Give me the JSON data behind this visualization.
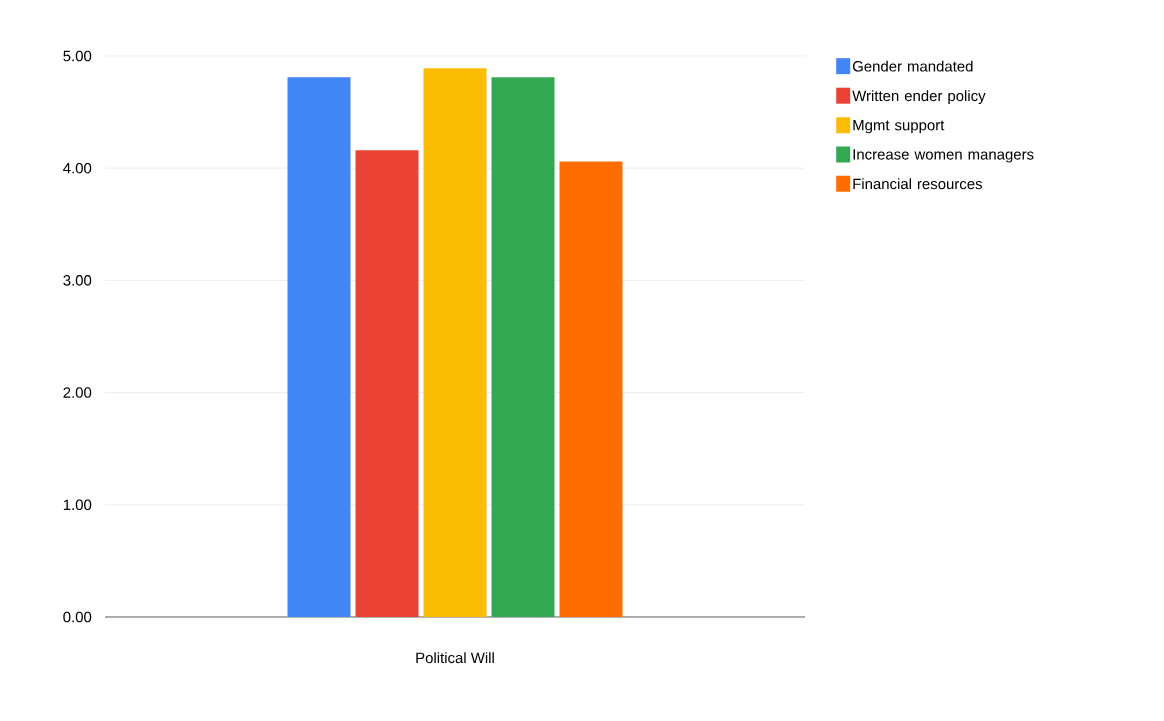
{
  "chart_data": {
    "type": "bar",
    "categories": [
      "Political Will"
    ],
    "series": [
      {
        "name": "Gender mandated",
        "color": "#4285f4",
        "values": [
          4.81
        ]
      },
      {
        "name": "Written ender policy",
        "color": "#ea4335",
        "values": [
          4.16
        ]
      },
      {
        "name": "Mgmt support",
        "color": "#fbbc04",
        "values": [
          4.89
        ]
      },
      {
        "name": "Increase  women managers",
        "color": "#34a853",
        "values": [
          4.81
        ]
      },
      {
        "name": "Financial resources",
        "color": "#ff6d01",
        "values": [
          4.06
        ]
      }
    ],
    "ylim": [
      0,
      5
    ],
    "yticks": [
      {
        "value": 0,
        "label": "0.00"
      },
      {
        "value": 1,
        "label": "1.00"
      },
      {
        "value": 2,
        "label": "2.00"
      },
      {
        "value": 3,
        "label": "3.00"
      },
      {
        "value": 4,
        "label": "4.00"
      },
      {
        "value": 5,
        "label": "5.00"
      }
    ],
    "grid": "y",
    "legend": "top right"
  }
}
